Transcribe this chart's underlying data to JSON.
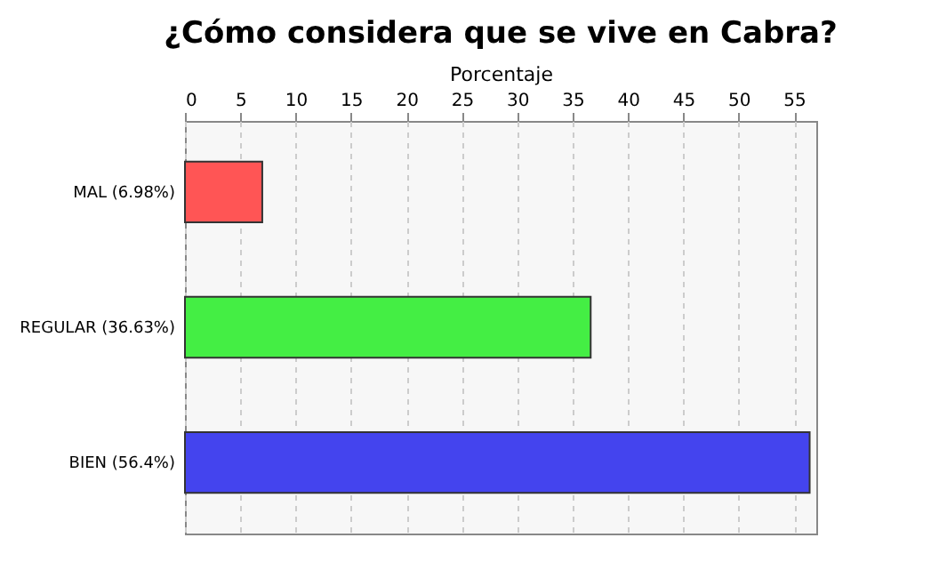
{
  "chart_data": {
    "type": "bar",
    "orientation": "horizontal",
    "title": "¿Cómo considera que se vive en Cabra?",
    "xlabel": "Porcentaje",
    "categories": [
      "MAL  (6.98%)",
      "REGULAR (36.63%)",
      "BIEN (56.4%)"
    ],
    "values": [
      6.98,
      36.63,
      56.4
    ],
    "colors": [
      "#ff5555",
      "#44ee44",
      "#4444ee"
    ],
    "xlim": [
      0,
      57
    ],
    "xticks": [
      0,
      5,
      10,
      15,
      20,
      25,
      30,
      35,
      40,
      45,
      50,
      55
    ],
    "grid": "x"
  }
}
